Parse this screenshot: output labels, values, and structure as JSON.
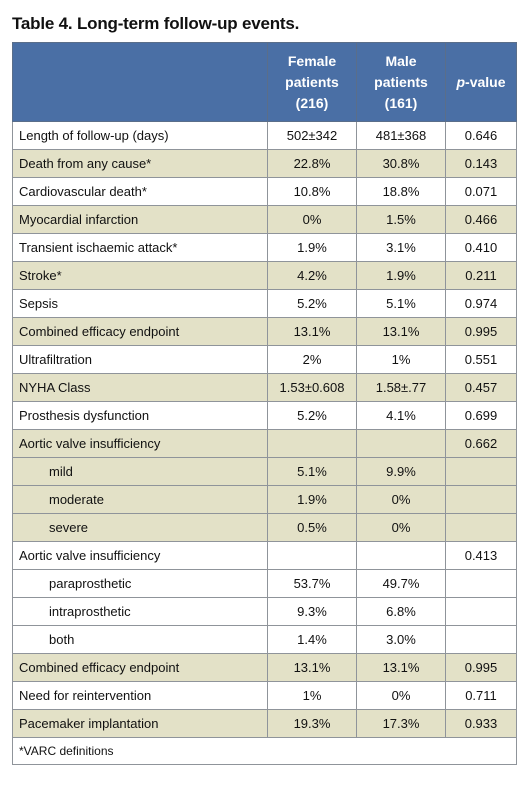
{
  "title": "Table 4. Long-term follow-up events.",
  "header": {
    "col1": "",
    "female_line1": "Female",
    "female_line2": "patients",
    "female_line3": "(216)",
    "male_line1": "Male",
    "male_line2": "patients",
    "male_line3": "(161)",
    "pvalue_p": "p",
    "pvalue_rest": "-value"
  },
  "rows": [
    {
      "label": "Length of follow-up (days)",
      "female": "502±342",
      "male": "481±368",
      "p": "0.646",
      "shade": false,
      "sub": false
    },
    {
      "label": "Death from any cause*",
      "female": "22.8%",
      "male": "30.8%",
      "p": "0.143",
      "shade": true,
      "sub": false
    },
    {
      "label": "Cardiovascular death*",
      "female": "10.8%",
      "male": "18.8%",
      "p": "0.071",
      "shade": false,
      "sub": false
    },
    {
      "label": "Myocardial infarction",
      "female": "0%",
      "male": "1.5%",
      "p": "0.466",
      "shade": true,
      "sub": false
    },
    {
      "label": "Transient ischaemic attack*",
      "female": "1.9%",
      "male": "3.1%",
      "p": "0.410",
      "shade": false,
      "sub": false
    },
    {
      "label": "Stroke*",
      "female": "4.2%",
      "male": "1.9%",
      "p": "0.211",
      "shade": true,
      "sub": false
    },
    {
      "label": "Sepsis",
      "female": "5.2%",
      "male": "5.1%",
      "p": "0.974",
      "shade": false,
      "sub": false
    },
    {
      "label": "Combined efficacy endpoint",
      "female": "13.1%",
      "male": "13.1%",
      "p": "0.995",
      "shade": true,
      "sub": false
    },
    {
      "label": "Ultrafiltration",
      "female": "2%",
      "male": "1%",
      "p": "0.551",
      "shade": false,
      "sub": false
    },
    {
      "label": "NYHA Class",
      "female": "1.53±0.608",
      "male": "1.58±.77",
      "p": "0.457",
      "shade": true,
      "sub": false
    },
    {
      "label": "Prosthesis dysfunction",
      "female": "5.2%",
      "male": "4.1%",
      "p": "0.699",
      "shade": false,
      "sub": false
    },
    {
      "label": "Aortic valve insufficiency",
      "female": "",
      "male": "",
      "p": "0.662",
      "shade": true,
      "sub": false
    },
    {
      "label": "mild",
      "female": "5.1%",
      "male": "9.9%",
      "p": "",
      "shade": true,
      "sub": true
    },
    {
      "label": "moderate",
      "female": "1.9%",
      "male": "0%",
      "p": "",
      "shade": true,
      "sub": true
    },
    {
      "label": "severe",
      "female": "0.5%",
      "male": "0%",
      "p": "",
      "shade": true,
      "sub": true
    },
    {
      "label": "Aortic valve insufficiency",
      "female": "",
      "male": "",
      "p": "0.413",
      "shade": false,
      "sub": false
    },
    {
      "label": "paraprosthetic",
      "female": "53.7%",
      "male": "49.7%",
      "p": "",
      "shade": false,
      "sub": true
    },
    {
      "label": "intraprosthetic",
      "female": "9.3%",
      "male": "6.8%",
      "p": "",
      "shade": false,
      "sub": true
    },
    {
      "label": "both",
      "female": "1.4%",
      "male": "3.0%",
      "p": "",
      "shade": false,
      "sub": true
    },
    {
      "label": "Combined efficacy endpoint",
      "female": "13.1%",
      "male": "13.1%",
      "p": "0.995",
      "shade": true,
      "sub": false
    },
    {
      "label": "Need for reintervention",
      "female": "1%",
      "male": "0%",
      "p": "0.711",
      "shade": false,
      "sub": false
    },
    {
      "label": "Pacemaker implantation",
      "female": "19.3%",
      "male": "17.3%",
      "p": "0.933",
      "shade": true,
      "sub": false
    }
  ],
  "footnote": "*VARC definitions",
  "colors": {
    "header_bg": "#4a6fa5",
    "shade_bg": "#e3e1c7"
  }
}
